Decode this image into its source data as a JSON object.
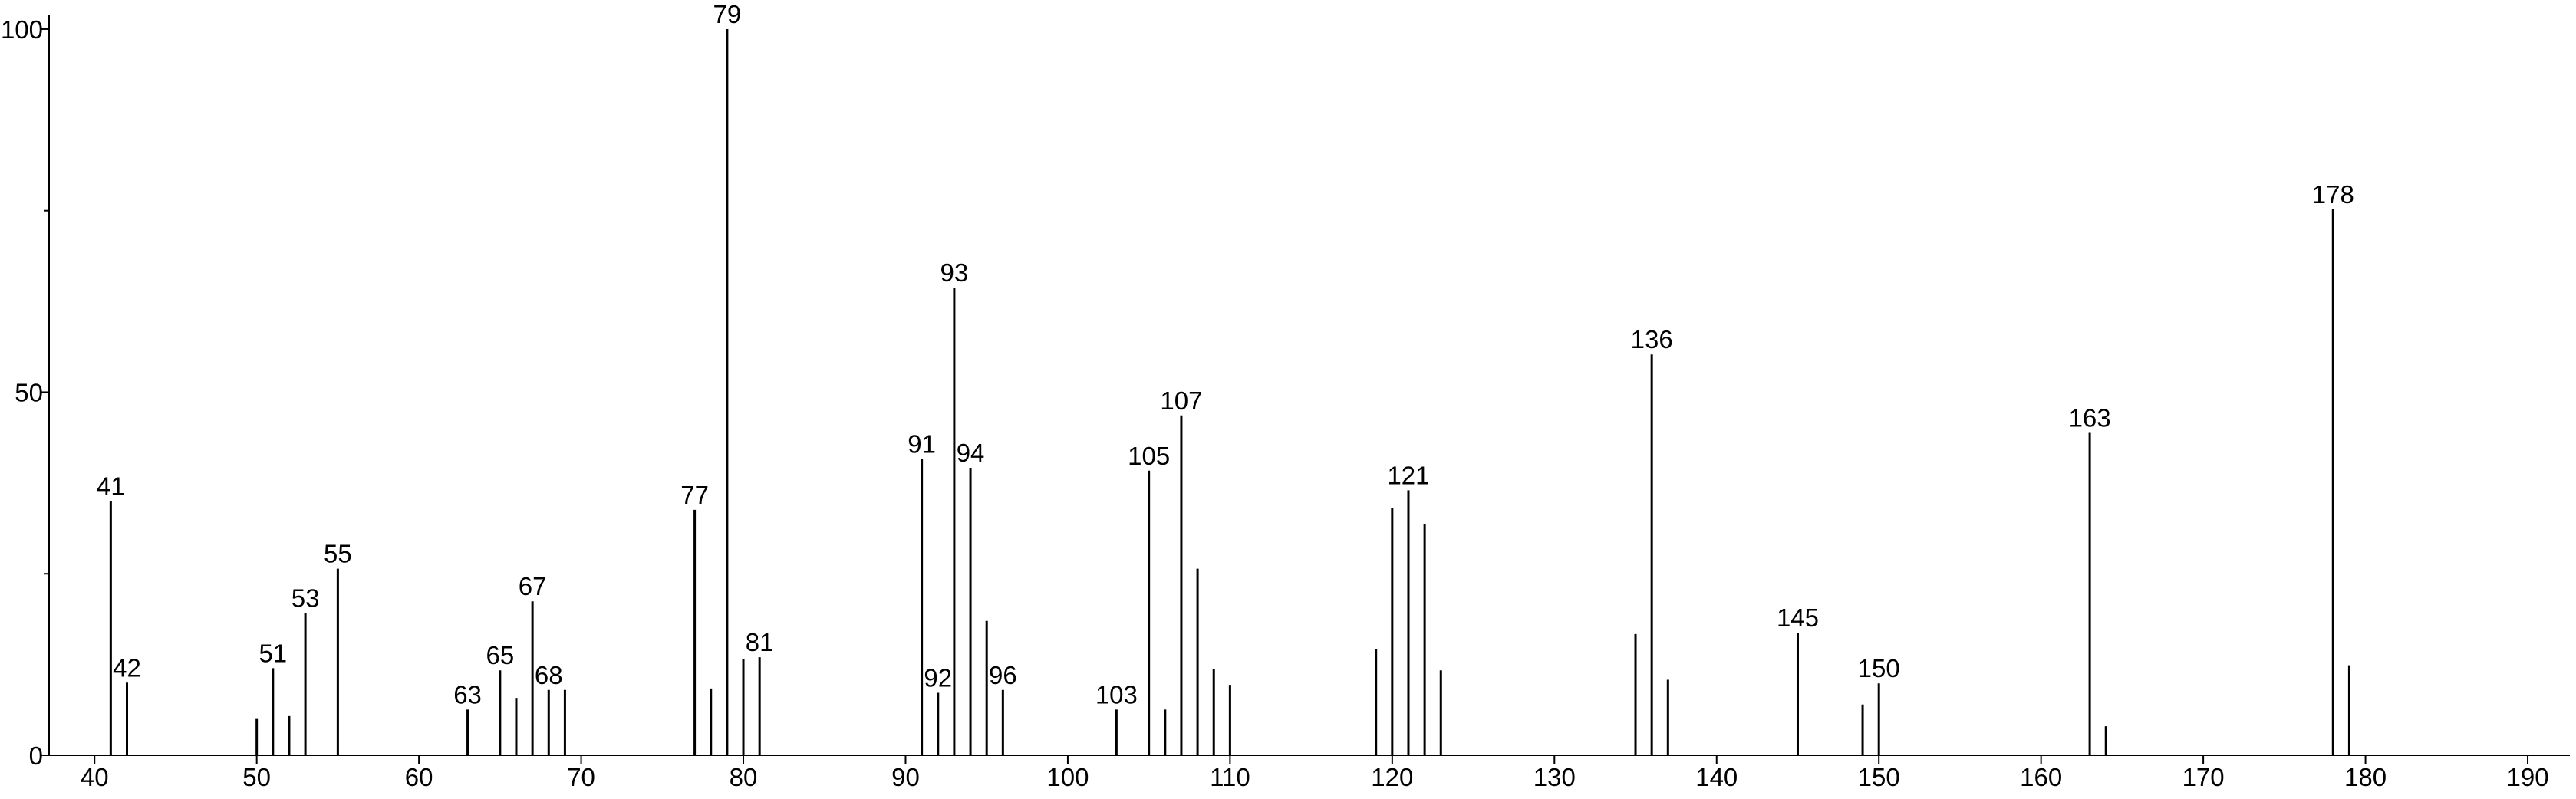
{
  "chart_data": {
    "type": "stick",
    "x": [
      41,
      42,
      50,
      51,
      52,
      53,
      55,
      63,
      65,
      66,
      67,
      68,
      69,
      77,
      78,
      79,
      80,
      81,
      91,
      92,
      93,
      94,
      95,
      96,
      103,
      105,
      106,
      107,
      108,
      109,
      110,
      119,
      120,
      121,
      122,
      123,
      135,
      136,
      137,
      145,
      149,
      150,
      163,
      164,
      178,
      179
    ],
    "values": [
      35,
      10,
      5,
      12,
      5.4,
      19.6,
      25.7,
      6.3,
      11.7,
      7.9,
      21.2,
      9,
      9,
      33.8,
      9.2,
      100,
      13.3,
      13.5,
      40.8,
      8.6,
      64.4,
      39.6,
      18.5,
      9,
      6.3,
      39.2,
      6.3,
      46.8,
      25.7,
      11.9,
      9.7,
      14.6,
      34,
      36.5,
      31.8,
      11.7,
      16.7,
      55.2,
      10.4,
      16.9,
      7,
      9.9,
      44.4,
      4,
      75.2,
      12.4
    ],
    "show_label": [
      true,
      true,
      false,
      true,
      false,
      true,
      true,
      true,
      true,
      false,
      true,
      true,
      false,
      true,
      false,
      true,
      false,
      true,
      true,
      true,
      true,
      true,
      false,
      true,
      true,
      true,
      false,
      true,
      false,
      false,
      false,
      false,
      false,
      true,
      false,
      false,
      false,
      true,
      false,
      true,
      false,
      true,
      true,
      false,
      true,
      false
    ],
    "color": "#000000",
    "xlim": [
      37.2,
      192.6
    ],
    "ylim": [
      0,
      102
    ],
    "xticks": [
      40,
      50,
      60,
      70,
      80,
      90,
      100,
      110,
      120,
      130,
      140,
      150,
      160,
      170,
      180,
      190
    ],
    "yticks": [
      0,
      50,
      100
    ],
    "yminorticks": [
      25,
      75
    ]
  }
}
